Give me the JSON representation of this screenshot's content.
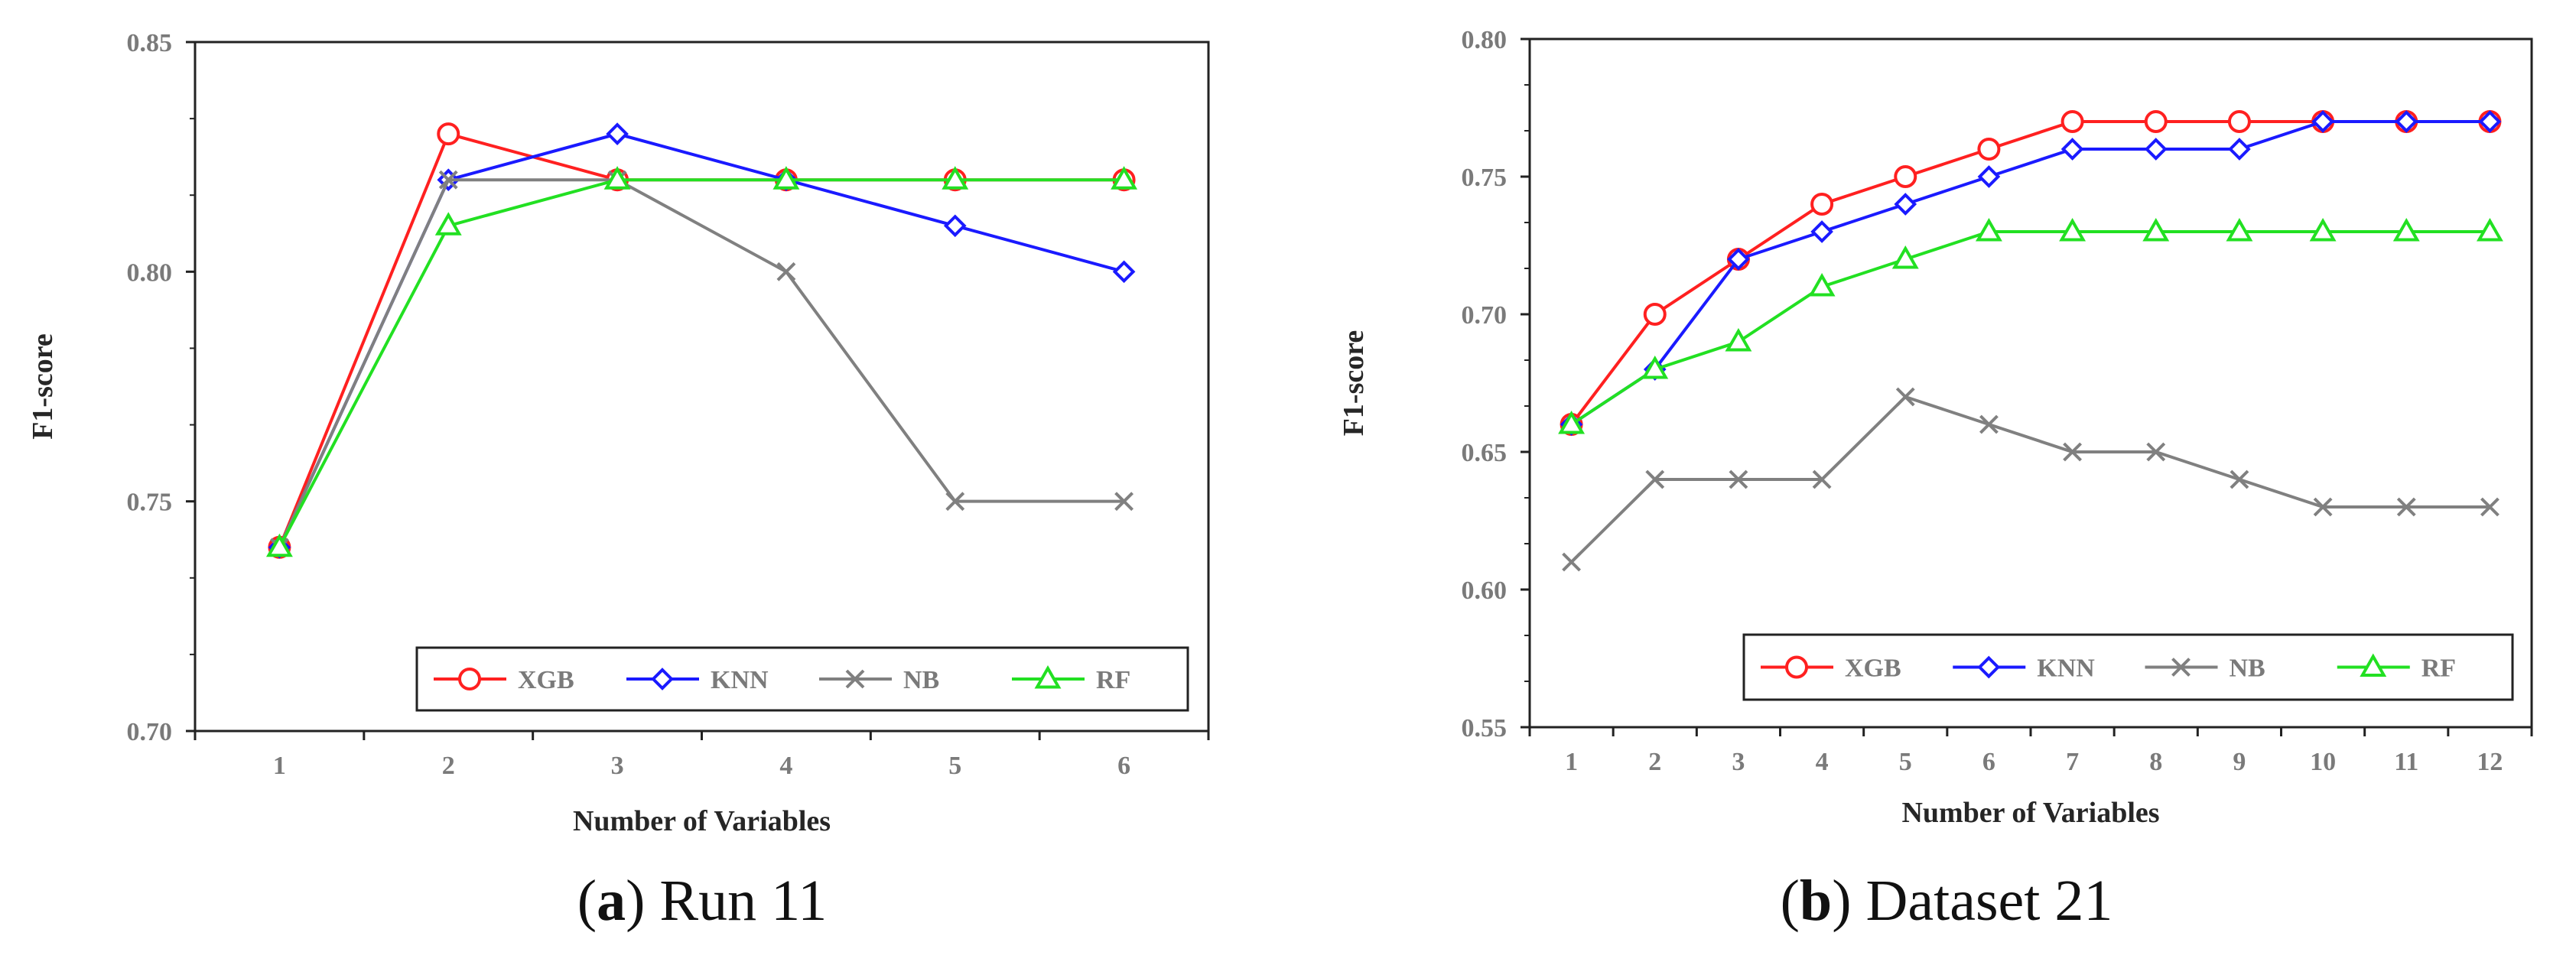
{
  "chart_data": [
    {
      "type": "line",
      "caption": {
        "letter": "a",
        "open": "(",
        "close": ")",
        "text": "Run 11"
      },
      "xlabel": "Number of Variables",
      "ylabel": "F1-score",
      "categories": [
        "1",
        "2",
        "3",
        "4",
        "5",
        "6"
      ],
      "ylim": [
        0.7,
        0.85
      ],
      "yticks": [
        0.7,
        0.75,
        0.8,
        0.85
      ],
      "ytick_labels": [
        "0.70",
        "0.75",
        "0.80",
        "0.85"
      ],
      "legend_position": "bottom-right",
      "series": [
        {
          "name": "XGB",
          "color": "#ff2020",
          "marker": "circle",
          "values": [
            0.74,
            0.83,
            0.82,
            0.82,
            0.82,
            0.82
          ]
        },
        {
          "name": "KNN",
          "color": "#1a1aff",
          "marker": "diamond",
          "values": [
            0.74,
            0.82,
            0.83,
            0.82,
            0.81,
            0.8
          ]
        },
        {
          "name": "NB",
          "color": "#808080",
          "marker": "x",
          "values": [
            0.74,
            0.82,
            0.82,
            0.8,
            0.75,
            0.75
          ]
        },
        {
          "name": "RF",
          "color": "#22e022",
          "marker": "triangle",
          "values": [
            0.74,
            0.81,
            0.82,
            0.82,
            0.82,
            0.82
          ]
        }
      ]
    },
    {
      "type": "line",
      "caption": {
        "letter": "b",
        "open": "(",
        "close": ")",
        "text": "Dataset 21"
      },
      "xlabel": "Number of Variables",
      "ylabel": "F1-score",
      "categories": [
        "1",
        "2",
        "3",
        "4",
        "5",
        "6",
        "7",
        "8",
        "9",
        "10",
        "11",
        "12"
      ],
      "ylim": [
        0.55,
        0.8
      ],
      "yticks": [
        0.55,
        0.6,
        0.65,
        0.7,
        0.75,
        0.8
      ],
      "ytick_labels": [
        "0.55",
        "0.60",
        "0.65",
        "0.70",
        "0.75",
        "0.80"
      ],
      "legend_position": "bottom-right",
      "series": [
        {
          "name": "XGB",
          "color": "#ff2020",
          "marker": "circle",
          "values": [
            0.66,
            0.7,
            0.72,
            0.74,
            0.75,
            0.76,
            0.77,
            0.77,
            0.77,
            0.77,
            0.77,
            0.77
          ]
        },
        {
          "name": "KNN",
          "color": "#1a1aff",
          "marker": "diamond",
          "values": [
            0.66,
            0.68,
            0.72,
            0.73,
            0.74,
            0.75,
            0.76,
            0.76,
            0.76,
            0.77,
            0.77,
            0.77
          ]
        },
        {
          "name": "NB",
          "color": "#808080",
          "marker": "x",
          "values": [
            0.61,
            0.64,
            0.64,
            0.64,
            0.67,
            0.66,
            0.65,
            0.65,
            0.64,
            0.63,
            0.63,
            0.63
          ]
        },
        {
          "name": "RF",
          "color": "#22e022",
          "marker": "triangle",
          "values": [
            0.66,
            0.68,
            0.69,
            0.71,
            0.72,
            0.73,
            0.73,
            0.73,
            0.73,
            0.73,
            0.73,
            0.73
          ]
        }
      ]
    }
  ]
}
